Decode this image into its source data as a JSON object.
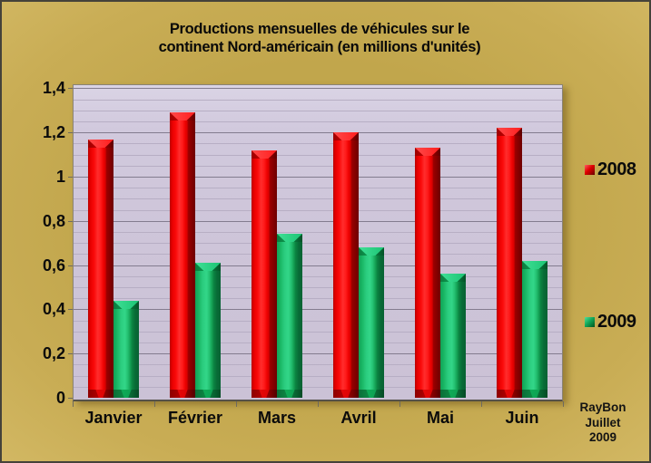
{
  "title": {
    "line1": "Productions mensuelles de véhicules  sur le",
    "line2": "continent Nord-américain (en millions d'unités)"
  },
  "chart_data": {
    "type": "bar",
    "title": "Productions mensuelles de véhicules sur le continent Nord-américain (en millions d'unités)",
    "categories": [
      "Janvier",
      "Février",
      "Mars",
      "Avril",
      "Mai",
      "Juin"
    ],
    "series": [
      {
        "name": "2008",
        "color": "#E80000",
        "values": [
          1.17,
          1.29,
          1.12,
          1.2,
          1.13,
          1.22
        ]
      },
      {
        "name": "2009",
        "color": "#14A85A",
        "values": [
          0.44,
          0.61,
          0.74,
          0.68,
          0.56,
          0.62
        ]
      }
    ],
    "xlabel": "",
    "ylabel": "",
    "ylim": [
      0,
      1.4
    ],
    "y_major_step": 0.2,
    "y_minor_step": 0.05,
    "y_tick_labels": [
      "0",
      "0,2",
      "0,4",
      "0,6",
      "0,8",
      "1",
      "1,2",
      "1,4"
    ],
    "decimal_separator": ",",
    "grid": "on",
    "legend_position": "right",
    "plot_background": "#CDC4D8",
    "frame_background": "#C9AD55"
  },
  "legend": {
    "items": [
      {
        "label": "2008",
        "color": "#E80000"
      },
      {
        "label": "2009",
        "color": "#14A85A"
      }
    ]
  },
  "credit": {
    "line1": "RayBon",
    "line2": "Juillet",
    "line3": "2009"
  }
}
